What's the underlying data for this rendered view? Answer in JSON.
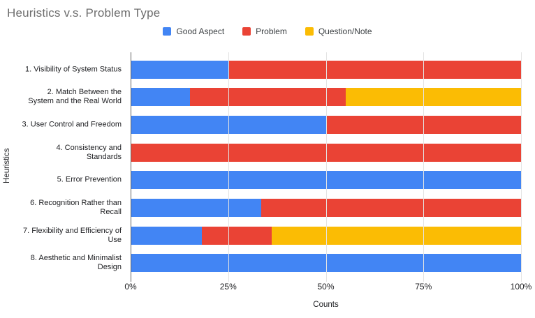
{
  "chart_data": {
    "type": "bar",
    "stacked": true,
    "orientation": "horizontal",
    "title": "Heuristics v.s. Problem Type",
    "xlabel": "Counts",
    "ylabel": "Heuristics",
    "legend_position": "top",
    "grid": true,
    "x_axis": {
      "min": 0,
      "max": 100,
      "tick_labels": [
        "0%",
        "25%",
        "50%",
        "75%",
        "100%"
      ],
      "tick_positions": [
        0,
        25,
        50,
        75,
        100
      ]
    },
    "categories": [
      "1. Visibility of System Status",
      "2. Match Between the System and the Real World",
      "3. User Control and Freedom",
      "4. Consistency and Standards",
      "5. Error Prevention",
      "6. Recognition Rather than Recall",
      "7. Flexibility and Efficiency of Use",
      "8. Aesthetic and Minimalist Design"
    ],
    "category_label_lines": [
      [
        "1. Visibility of System Status"
      ],
      [
        "2. Match Between the",
        "System and the Real World"
      ],
      [
        "3. User Control and Freedom"
      ],
      [
        "4. Consistency and",
        "Standards"
      ],
      [
        "5. Error Prevention"
      ],
      [
        "6. Recognition Rather than",
        "Recall"
      ],
      [
        "7. Flexibility and Efficiency of",
        "Use"
      ],
      [
        "8. Aesthetic and Minimalist",
        "Design"
      ]
    ],
    "series": [
      {
        "name": "Good Aspect",
        "color": "#4285F4",
        "values": [
          25,
          15,
          50,
          0,
          100,
          33.3,
          18,
          100
        ]
      },
      {
        "name": "Problem",
        "color": "#EA4335",
        "values": [
          75,
          40,
          50,
          100,
          0,
          66.7,
          18,
          0
        ]
      },
      {
        "name": "Question/Note",
        "color": "#FBBC04",
        "values": [
          0,
          45,
          0,
          0,
          0,
          0,
          64,
          0
        ]
      }
    ],
    "style": {
      "axis_line_color": "#616161",
      "gridline_color": "#e3e3e3",
      "title_color": "#6d6d6d"
    }
  }
}
